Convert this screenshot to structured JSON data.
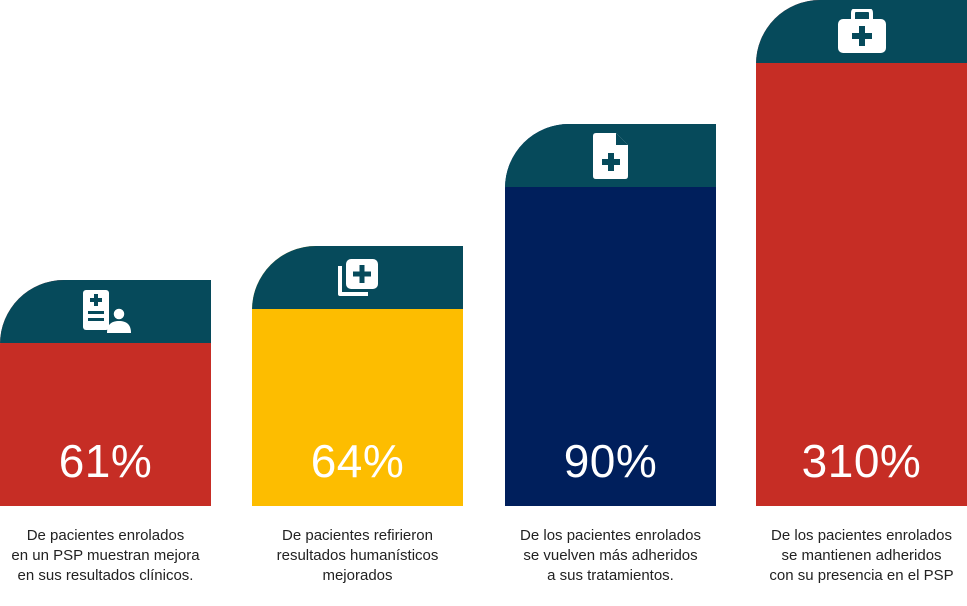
{
  "chart_data": {
    "type": "bar",
    "title": "",
    "xlabel": "",
    "ylabel": "",
    "bars": [
      {
        "value": 61,
        "label": "61%",
        "color": "#c62d25",
        "icon": "patient-record-icon",
        "caption": [
          "De pacientes enrolados",
          "en un PSP muestran mejora",
          "en sus resultados clínicos."
        ]
      },
      {
        "value": 64,
        "label": "64%",
        "color": "#fdbd00",
        "icon": "medical-cards-icon",
        "caption": [
          "De pacientes refirieron",
          "resultados humanísticos",
          "mejorados"
        ]
      },
      {
        "value": 90,
        "label": "90%",
        "color": "#001f5c",
        "icon": "medical-document-icon",
        "caption": [
          "De los pacientes enrolados",
          "se vuelven más adheridos",
          "a sus tratamientos."
        ]
      },
      {
        "value": 310,
        "label": "310%",
        "color": "#c62d25",
        "icon": "first-aid-kit-icon",
        "caption": [
          "De los pacientes enrolados",
          "se mantienen adheridos",
          "con su presencia en el PSP"
        ]
      }
    ],
    "header_color": "#064a5b"
  }
}
